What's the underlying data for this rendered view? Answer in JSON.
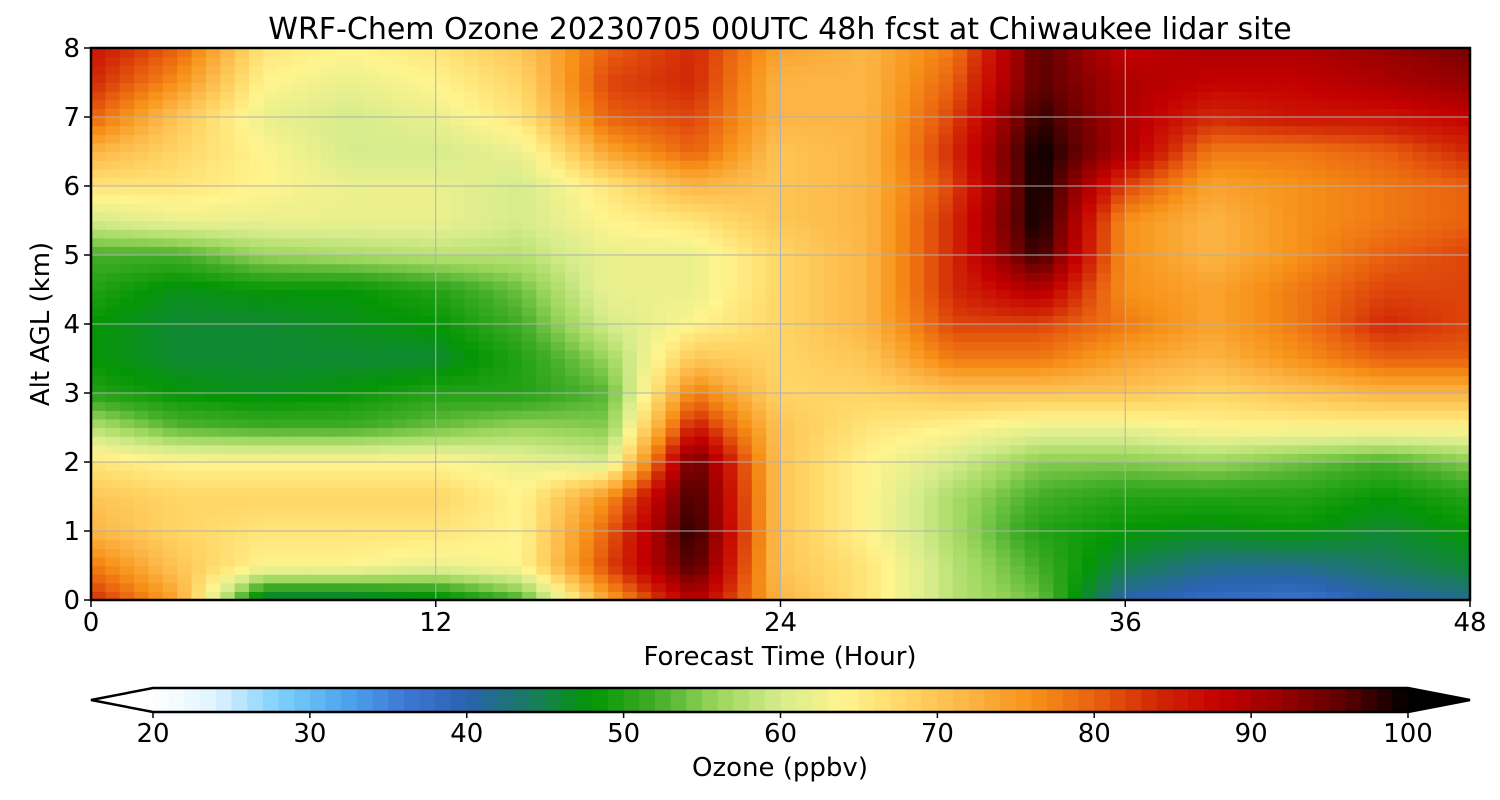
{
  "chart_data": {
    "type": "heatmap",
    "title": "WRF-Chem Ozone  20230705 00UTC 48h fcst at Chiwaukee lidar site",
    "xlabel": "Forecast Time (Hour)",
    "ylabel": "Alt AGL (km)",
    "xlim": [
      0,
      48
    ],
    "ylim": [
      0,
      8
    ],
    "xticks": [
      "0",
      "12",
      "24",
      "36",
      "48"
    ],
    "yticks": [
      "0",
      "1",
      "2",
      "3",
      "4",
      "5",
      "6",
      "7",
      "8"
    ],
    "grid": true,
    "colorbar": {
      "label": "Ozone  (ppbv)",
      "vmin": 20,
      "vmax": 100,
      "ticks": [
        "20",
        "30",
        "40",
        "50",
        "60",
        "70",
        "80",
        "90",
        "100"
      ],
      "extend": "both",
      "colors": [
        "#ffffff",
        "#dff3ff",
        "#7fd0fb",
        "#4fa8ee",
        "#3f78d4",
        "#2a62b0",
        "#1a7a60",
        "#049604",
        "#42ad28",
        "#9bd65c",
        "#d6ec8c",
        "#fff48e",
        "#ffd565",
        "#fcb545",
        "#f79218",
        "#e9610f",
        "#d12706",
        "#c40000",
        "#960000",
        "#5a0000",
        "#000000"
      ]
    },
    "x": [
      0,
      3,
      6,
      9,
      12,
      15,
      18,
      21,
      24,
      27,
      30,
      33,
      36,
      39,
      42,
      45,
      48
    ],
    "y": [
      0,
      0.5,
      1,
      1.5,
      2,
      2.5,
      3,
      3.5,
      4,
      4.5,
      5,
      5.5,
      6,
      6.5,
      7,
      7.5,
      8
    ],
    "z": [
      [
        84,
        74,
        44,
        44,
        46,
        52,
        74,
        90,
        72,
        66,
        58,
        54,
        40,
        38,
        37,
        40,
        42
      ],
      [
        78,
        70,
        64,
        64,
        62,
        64,
        82,
        97,
        70,
        66,
        58,
        52,
        45,
        42,
        42,
        44,
        46
      ],
      [
        72,
        68,
        66,
        66,
        66,
        64,
        80,
        99,
        70,
        64,
        57,
        50,
        48,
        47,
        48,
        46,
        48
      ],
      [
        70,
        68,
        68,
        68,
        68,
        64,
        76,
        98,
        70,
        64,
        57,
        52,
        50,
        50,
        50,
        48,
        50
      ],
      [
        66,
        64,
        64,
        64,
        64,
        62,
        60,
        96,
        70,
        64,
        60,
        55,
        55,
        56,
        54,
        52,
        55
      ],
      [
        58,
        53,
        52,
        52,
        54,
        56,
        55,
        86,
        70,
        66,
        64,
        62,
        62,
        64,
        64,
        64,
        64
      ],
      [
        50,
        48,
        47,
        48,
        50,
        50,
        53,
        78,
        68,
        68,
        70,
        70,
        70,
        68,
        70,
        72,
        72
      ],
      [
        48,
        46,
        46,
        46,
        46,
        50,
        56,
        70,
        68,
        70,
        78,
        78,
        74,
        72,
        76,
        80,
        80
      ],
      [
        48,
        46,
        46,
        47,
        48,
        52,
        60,
        64,
        68,
        72,
        82,
        82,
        78,
        74,
        78,
        84,
        82
      ],
      [
        50,
        47,
        48,
        48,
        50,
        54,
        62,
        62,
        68,
        72,
        84,
        90,
        76,
        74,
        78,
        82,
        82
      ],
      [
        52,
        52,
        56,
        57,
        58,
        58,
        62,
        62,
        68,
        72,
        84,
        98,
        76,
        72,
        76,
        80,
        82
      ],
      [
        60,
        62,
        62,
        62,
        62,
        60,
        64,
        66,
        70,
        72,
        84,
        100,
        76,
        72,
        76,
        78,
        80
      ],
      [
        66,
        66,
        64,
        62,
        62,
        60,
        66,
        72,
        70,
        72,
        82,
        100,
        82,
        74,
        76,
        78,
        80
      ],
      [
        72,
        68,
        64,
        60,
        60,
        62,
        74,
        80,
        70,
        72,
        84,
        100,
        90,
        78,
        78,
        80,
        84
      ],
      [
        80,
        70,
        62,
        60,
        62,
        66,
        80,
        82,
        72,
        72,
        82,
        98,
        90,
        84,
        86,
        86,
        88
      ],
      [
        84,
        76,
        64,
        62,
        64,
        68,
        82,
        84,
        72,
        72,
        80,
        96,
        90,
        88,
        88,
        90,
        92
      ],
      [
        86,
        80,
        66,
        64,
        66,
        70,
        80,
        84,
        74,
        72,
        78,
        96,
        88,
        90,
        90,
        92,
        94
      ]
    ]
  }
}
